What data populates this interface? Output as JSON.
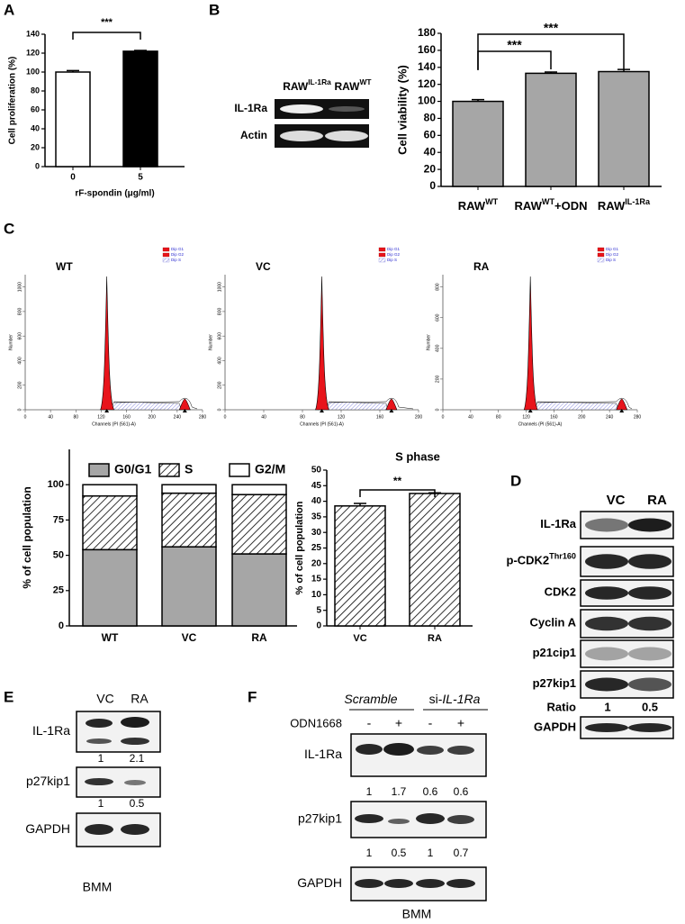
{
  "panel_letters": [
    "A",
    "B",
    "C",
    "D",
    "E",
    "F"
  ],
  "chart_data": [
    {
      "type": "bar",
      "ylabel": "Cell proliferation (%)",
      "xlabel": "rF-spondin (μg/ml)",
      "categories": [
        "0",
        "5"
      ],
      "values": [
        100,
        122
      ],
      "errors": [
        1.5,
        0.8
      ],
      "colors": [
        "#ffffff",
        "#000000"
      ],
      "ylim": [
        0,
        140
      ],
      "yticks": [
        0,
        20,
        40,
        60,
        80,
        100,
        120,
        140
      ],
      "annotations": [
        "***"
      ]
    },
    {
      "type": "bar",
      "ylabel": "Cell viability (%)",
      "categories": [
        [
          "RAW",
          "WT"
        ],
        [
          "RAW",
          "WT",
          "+ODN"
        ],
        [
          "RAW",
          "IL-1Ra"
        ]
      ],
      "values": [
        100,
        133,
        135
      ],
      "errors": [
        2,
        1.5,
        2.5
      ],
      "color": "#a6a6a6",
      "ylim": [
        0,
        180
      ],
      "yticks": [
        0,
        20,
        40,
        60,
        80,
        100,
        120,
        140,
        160,
        180
      ],
      "annotations": [
        "***",
        "***"
      ]
    },
    {
      "type": "flow",
      "title": "WT",
      "xlabel": "Channels (PI (561)-A)",
      "ylabel": "Number",
      "legend": [
        "Dip G1",
        "Dip G2",
        "Dip S"
      ],
      "xlim": [
        0,
        280
      ],
      "xticks": [
        0,
        40,
        80,
        120,
        160,
        200,
        240,
        280
      ],
      "ylim": [
        0,
        1100
      ],
      "yticks": [
        0,
        200,
        400,
        600,
        800,
        1000
      ]
    },
    {
      "type": "flow",
      "title": "VC",
      "xlabel": "Channels (PI (561)-A)",
      "ylabel": "Number",
      "legend": [
        "Dip G1",
        "Dip G2",
        "Dip S"
      ],
      "xlim": [
        0,
        200
      ],
      "xticks": [
        0,
        40,
        80,
        120,
        160,
        200
      ],
      "ylim": [
        0,
        1100
      ],
      "yticks": [
        0,
        200,
        400,
        600,
        800,
        1000
      ]
    },
    {
      "type": "flow",
      "title": "RA",
      "xlabel": "Channels (PI (561)-A)",
      "ylabel": "Number",
      "legend": [
        "Dip G1",
        "Dip G2",
        "Dip S"
      ],
      "xlim": [
        0,
        280
      ],
      "xticks": [
        0,
        40,
        80,
        120,
        160,
        200,
        240,
        280
      ],
      "ylim": [
        0,
        880
      ],
      "yticks": [
        0,
        200,
        400,
        600,
        800
      ]
    },
    {
      "type": "stacked",
      "ylabel": "% of cell population",
      "categories": [
        "WT",
        "VC",
        "RA"
      ],
      "series": [
        {
          "name": "G0/G1",
          "color": "#a6a6a6",
          "values": [
            54,
            56,
            51
          ]
        },
        {
          "name": "S",
          "color": "#ffffff",
          "hatch": true,
          "values": [
            38,
            38,
            42
          ]
        },
        {
          "name": "G2/M",
          "color": "#ffffff",
          "values": [
            8,
            6,
            7
          ]
        }
      ],
      "ylim": [
        0,
        125
      ],
      "yticks": [
        0,
        25,
        50,
        75,
        100
      ]
    },
    {
      "type": "bar",
      "title": "S phase",
      "ylabel": "% of cell population",
      "categories": [
        "VC",
        "RA"
      ],
      "values": [
        38.5,
        42.5
      ],
      "errors": [
        0.8,
        0.2
      ],
      "color": "#ffffff",
      "hatch": true,
      "ylim": [
        0,
        50
      ],
      "yticks": [
        0,
        5,
        10,
        15,
        20,
        25,
        30,
        35,
        40,
        45,
        50
      ],
      "annotations": [
        "**"
      ]
    }
  ],
  "gel_b": {
    "lanes": [
      [
        "RAW",
        "IL-1Ra"
      ],
      [
        "RAW",
        "WT"
      ]
    ],
    "rows": [
      "IL-1Ra",
      "Actin"
    ]
  },
  "blot_d": {
    "lanes": [
      "VC",
      "RA"
    ],
    "rows": [
      [
        "IL-1Ra"
      ],
      [
        "p-CDK2",
        "Thr160"
      ],
      [
        "CDK2"
      ],
      [
        "Cyclin A"
      ],
      [
        "p21cip1"
      ],
      [
        "p27kip1"
      ]
    ],
    "ratio_label": "Ratio",
    "ratios": [
      1,
      0.5
    ],
    "last_row": "GAPDH"
  },
  "blot_e": {
    "lanes": [
      "VC",
      "RA"
    ],
    "rows": [
      {
        "label": "IL-1Ra",
        "numbers": [
          1,
          2.1
        ]
      },
      {
        "label": "p27kip1",
        "numbers": [
          1,
          0.5
        ]
      },
      {
        "label": "GAPDH"
      }
    ],
    "footer": "BMM"
  },
  "blot_f": {
    "groups": [
      [
        "Scramble"
      ],
      [
        "si-",
        "IL-1Ra"
      ]
    ],
    "treatment": "ODN1668",
    "signs": [
      "-",
      "+",
      "-",
      "+"
    ],
    "rows": [
      {
        "label": "IL-1Ra",
        "numbers": [
          1,
          1.7,
          0.6,
          0.6
        ]
      },
      {
        "label": "p27kip1",
        "numbers": [
          1,
          0.5,
          1,
          0.7
        ]
      },
      {
        "label": "GAPDH"
      }
    ],
    "footer": "BMM"
  }
}
